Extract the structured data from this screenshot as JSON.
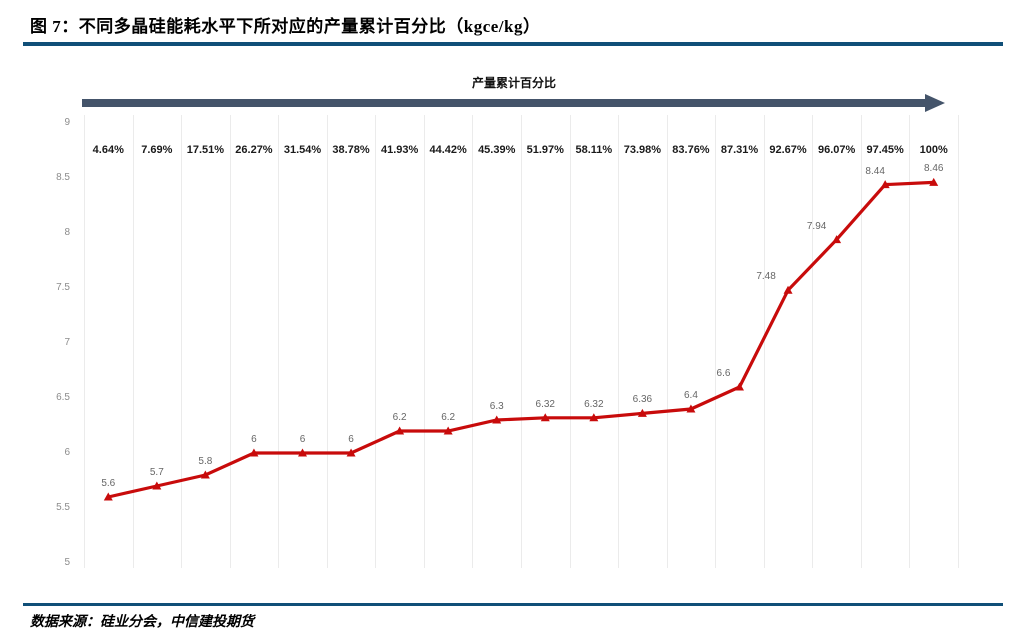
{
  "title": "图 7：不同多晶硅能耗水平下所对应的产量累计百分比（kgce/kg）",
  "source": "数据来源：硅业分会，中信建投期货",
  "colors": {
    "rule": "#104F78",
    "arrow": "#44546A",
    "line": "#C80B0B",
    "data_label": "#666666",
    "axis_label": "#8C8C8C",
    "category_label": "#1A1A1A",
    "gridline": "#EBEBEB"
  },
  "chart_data": {
    "type": "line",
    "title": "产量累计百分比",
    "categories": [
      "4.64%",
      "7.69%",
      "17.51%",
      "26.27%",
      "31.54%",
      "38.78%",
      "41.93%",
      "44.42%",
      "45.39%",
      "51.97%",
      "58.11%",
      "73.98%",
      "83.76%",
      "87.31%",
      "92.67%",
      "96.07%",
      "97.45%",
      "100%"
    ],
    "values": [
      5.6,
      5.7,
      5.8,
      6,
      6,
      6,
      6.2,
      6.2,
      6.3,
      6.32,
      6.32,
      6.36,
      6.4,
      6.6,
      7.48,
      7.94,
      8.44,
      8.46
    ],
    "point_labels": [
      "5.6",
      "5.7",
      "5.8",
      "6",
      "6",
      "6",
      "6.2",
      "6.2",
      "6.3",
      "6.32",
      "6.32",
      "6.36",
      "6.4",
      "6.6",
      "7.48",
      "7.94",
      "8.44",
      "8.46"
    ],
    "xlabel": "产量累计百分比",
    "ylabel": "",
    "ylim": [
      5,
      9
    ],
    "yticks": [
      "9",
      "8.5",
      "8",
      "7.5",
      "7",
      "6.5",
      "6",
      "5.5",
      "5"
    ],
    "grid": "vertical",
    "legend": "none",
    "marker": "triangle"
  }
}
